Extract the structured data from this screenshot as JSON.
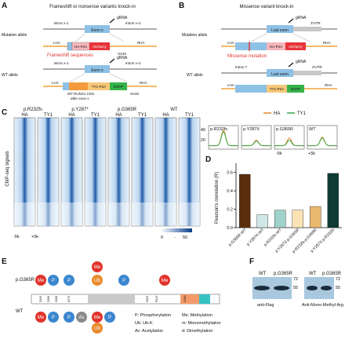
{
  "panels": {
    "A": {
      "letter": "A",
      "title": "Frameshift or nonsense variants knock-in",
      "mutation_allele_label": "Mutation allele",
      "wt_allele_label": "WT allele",
      "grna": "gRNA",
      "exon": "Exon x",
      "intron_prev": "Intron x-1",
      "intron_next": "Intron x+1",
      "lha": "LHA",
      "rha": "RHA",
      "ha_p2a": "HA-P2A",
      "mcherry": "mCherry",
      "sv40": "SV40",
      "frameshift_note": "Frameshift sequences",
      "ty1_p2a": "TY1-P2A",
      "egfp": "EGFP",
      "wt_cds_note_1": "WT RUNX1 CDS",
      "wt_cds_note_2": "after exon x"
    },
    "B": {
      "letter": "B",
      "title": "Missense variant knock-in",
      "mutation_allele_label": "Mutation allele",
      "wt_allele_label": "WT allele",
      "grna": "gRNA",
      "last_exon": "Last exon",
      "utr": "3'UTR",
      "intron7": "Intron 7",
      "lha": "LHA",
      "rha": "RHA",
      "ha_p2a": "HA-P2A",
      "mcherry": "mCherry",
      "missense_note": "Missense mutation",
      "ty1_p2a": "TY1-P2A",
      "egfp": "EGFP"
    },
    "C": {
      "letter": "C",
      "groups": [
        "p.R232fs",
        "p.Y287*",
        "p.G365R",
        "WT"
      ],
      "col_labels": [
        "HA",
        "TY1"
      ],
      "ylabel": "ChIP-seq signals",
      "x_left": "-5k",
      "x_right": "+5k",
      "colorbar_min": "0",
      "colorbar_sep": "-",
      "colorbar_max": "50",
      "legend_ha": "HA",
      "legend_ty1": "TY1",
      "profile_titles": [
        "p.R232fs",
        "p.Y287X",
        "p.G365R",
        "WT"
      ],
      "profile_yticks": [
        "20",
        "40"
      ],
      "profile_x_left": "-5k",
      "profile_x_right": "+5k"
    },
    "D": {
      "letter": "D"
    },
    "E": {
      "letter": "E",
      "mutant_label": "p.G365R",
      "wt_label": "WT",
      "sites": [
        "S249",
        "S266",
        "S268",
        "K276",
        "S303",
        "R319",
        "G365"
      ],
      "top_circles": [
        "Me",
        "P",
        "P",
        "Me",
        "Ub",
        "P",
        "Me"
      ],
      "bottom_circles": [
        "Me",
        "P",
        "P",
        "Ac",
        "Me",
        "P",
        "Ub"
      ],
      "legend": [
        "P: Phosphorylation",
        "Ub: Ub-K",
        "Ac: Acetylation",
        "Me: Methylation",
        "m: Monomethylation",
        "d: Dimethylation"
      ],
      "colors": {
        "methyl": "#e0332b",
        "phospho": "#3b86cf",
        "ubiquitin": "#e98a2b",
        "acetyl": "#8a8a8a"
      }
    },
    "F": {
      "letter": "F",
      "blot1": {
        "lanes": [
          "WT",
          "p.G365R"
        ],
        "caption": "anti-Flag",
        "mw": [
          "72",
          "55"
        ]
      },
      "blot2": {
        "lanes": [
          "WT",
          "p.G365R"
        ],
        "caption": "Anti-Mono-Methyl Arg",
        "mw": [
          "72",
          "55"
        ]
      }
    }
  },
  "chart_data": {
    "type": "bar",
    "categories": [
      "p.G365R-WT",
      "p.Y287X-WT",
      "p.R232fs-WT",
      "p.Y287X-p.G365R",
      "p.R232fs-p.G365R",
      "p.Y287X-p.R232fs"
    ],
    "values": [
      0.58,
      0.14,
      0.19,
      0.19,
      0.23,
      0.59
    ],
    "colors": [
      "#5a2d0c",
      "#cfe8e6",
      "#9fd3c9",
      "#fbe3b5",
      "#e9b96e",
      "#0f3b33"
    ],
    "ylabel": "Pearson's correlation (R)",
    "ylim": [
      0,
      0.7
    ],
    "yticks": [
      "0.0",
      "0.2",
      "0.4",
      "0.6"
    ]
  }
}
